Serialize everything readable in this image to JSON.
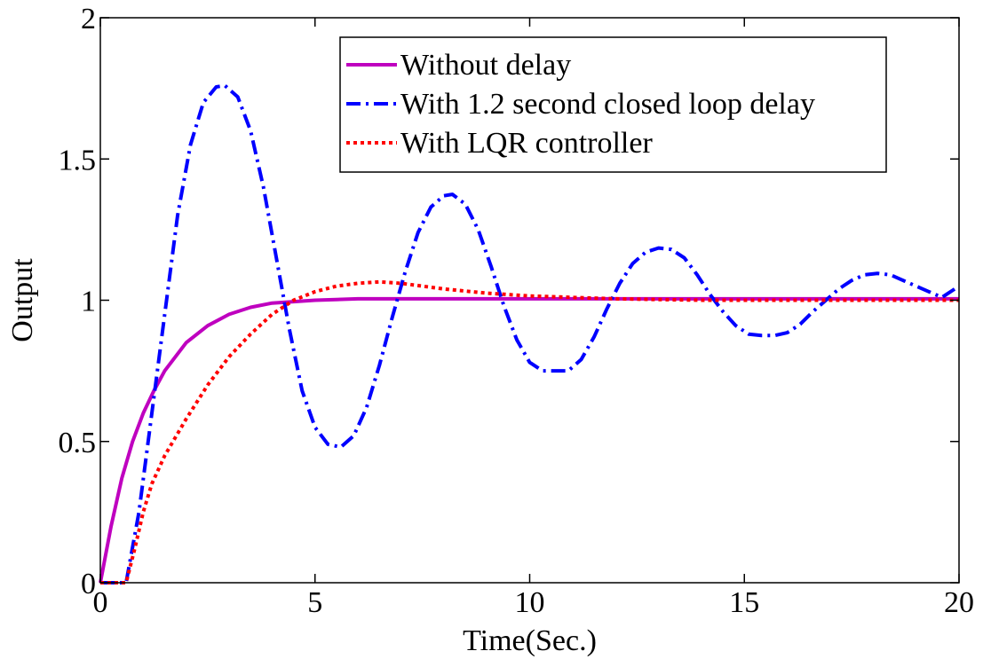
{
  "chart_data": {
    "type": "line",
    "xlabel": "Time(Sec.)",
    "ylabel": "Output",
    "xlim": [
      0,
      20
    ],
    "ylim": [
      0,
      2
    ],
    "xticks": [
      0,
      5,
      10,
      15,
      20
    ],
    "xtick_labels": [
      "0",
      "5",
      "10",
      "15",
      "20"
    ],
    "yticks": [
      0,
      0.5,
      1,
      1.5,
      2
    ],
    "ytick_labels": [
      "0",
      "0.5",
      "1",
      "1.5",
      "2"
    ],
    "grid": false,
    "legend_position": "top-right",
    "series": [
      {
        "name": "Without delay",
        "color": "#bf00bf",
        "line_style": "solid",
        "x": [
          0,
          0.25,
          0.5,
          0.75,
          1,
          1.25,
          1.5,
          2,
          2.5,
          3,
          3.5,
          4,
          5,
          6,
          8,
          10,
          12,
          15,
          20
        ],
        "y": [
          0,
          0.2,
          0.37,
          0.5,
          0.6,
          0.68,
          0.75,
          0.85,
          0.91,
          0.95,
          0.975,
          0.99,
          1.0,
          1.005,
          1.005,
          1.005,
          1.005,
          1.005,
          1.005
        ]
      },
      {
        "name": "With 1.2 second closed loop delay",
        "color": "#0000ff",
        "line_style": "dash-dot",
        "x": [
          0,
          0.6,
          0.9,
          1.2,
          1.5,
          1.8,
          2.1,
          2.4,
          2.7,
          2.9,
          3.2,
          3.5,
          3.8,
          4.1,
          4.4,
          4.7,
          5.0,
          5.3,
          5.6,
          5.9,
          6.2,
          6.5,
          6.8,
          7.1,
          7.4,
          7.7,
          8.0,
          8.2,
          8.5,
          8.8,
          9.1,
          9.4,
          9.7,
          10.0,
          10.3,
          10.6,
          10.9,
          11.2,
          11.5,
          11.8,
          12.1,
          12.4,
          12.7,
          13.0,
          13.3,
          13.6,
          13.9,
          14.2,
          14.5,
          14.8,
          15.1,
          15.4,
          15.7,
          16.0,
          16.3,
          16.6,
          16.9,
          17.2,
          17.5,
          17.8,
          18.1,
          18.4,
          18.7,
          19.0,
          19.3,
          19.6,
          20.0
        ],
        "y": [
          0,
          0,
          0.25,
          0.6,
          0.95,
          1.3,
          1.55,
          1.7,
          1.755,
          1.76,
          1.72,
          1.6,
          1.4,
          1.15,
          0.9,
          0.68,
          0.55,
          0.49,
          0.48,
          0.52,
          0.62,
          0.77,
          0.94,
          1.1,
          1.24,
          1.33,
          1.37,
          1.375,
          1.34,
          1.25,
          1.12,
          0.98,
          0.86,
          0.78,
          0.75,
          0.75,
          0.75,
          0.79,
          0.87,
          0.97,
          1.06,
          1.13,
          1.17,
          1.185,
          1.18,
          1.15,
          1.09,
          1.02,
          0.96,
          0.91,
          0.88,
          0.875,
          0.875,
          0.885,
          0.915,
          0.96,
          1.0,
          1.04,
          1.07,
          1.09,
          1.095,
          1.09,
          1.07,
          1.05,
          1.03,
          1.01,
          1.05
        ]
      },
      {
        "name": "With LQR controller",
        "color": "#ff0000",
        "line_style": "dotted",
        "x": [
          0,
          0.6,
          0.8,
          1.0,
          1.2,
          1.5,
          2.0,
          2.5,
          3.0,
          3.5,
          4.0,
          4.5,
          5.0,
          5.5,
          6.0,
          6.5,
          7.0,
          7.5,
          8.0,
          9.0,
          10.0,
          11.0,
          12.0,
          14.0,
          16.0,
          20.0
        ],
        "y": [
          0,
          0,
          0.12,
          0.25,
          0.35,
          0.45,
          0.58,
          0.7,
          0.8,
          0.88,
          0.95,
          1.0,
          1.03,
          1.05,
          1.06,
          1.065,
          1.06,
          1.05,
          1.04,
          1.025,
          1.015,
          1.01,
          1.005,
          1.0,
          1.0,
          1.0
        ]
      }
    ]
  }
}
